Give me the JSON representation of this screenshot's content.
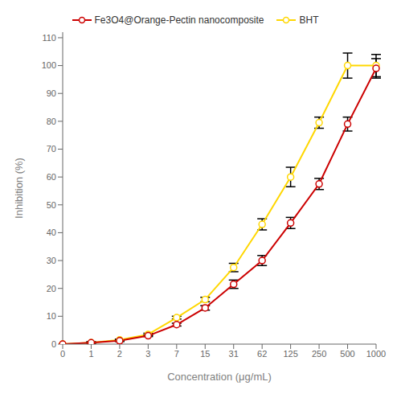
{
  "chart_data": {
    "type": "line",
    "xlabel": "Concentration (μg/mL)",
    "ylabel": "Inhibition (%)",
    "categories": [
      "0",
      "1",
      "2",
      "3",
      "7",
      "15",
      "31",
      "62",
      "125",
      "250",
      "500",
      "1000"
    ],
    "series": [
      {
        "name": "Fe3O4@Orange-Pectin nanocomposite",
        "color": "#cc0000",
        "marker": "circle",
        "values": [
          0,
          0.5,
          1.2,
          3.0,
          7.0,
          13.0,
          21.5,
          30.0,
          43.5,
          57.5,
          79.0,
          99.0
        ],
        "errors": [
          0.0,
          0.3,
          0.3,
          0.3,
          0.5,
          0.8,
          1.5,
          1.8,
          2.0,
          2.0,
          2.5,
          3.5
        ]
      },
      {
        "name": "BHT",
        "color": "#FFD700",
        "marker": "circle",
        "values": [
          0,
          0.5,
          1.5,
          3.5,
          9.5,
          16.0,
          27.5,
          43.0,
          60.0,
          79.5,
          100.0,
          100.0
        ],
        "errors": [
          0.0,
          0.3,
          0.3,
          0.4,
          0.5,
          0.8,
          1.5,
          2.0,
          3.5,
          2.0,
          4.5,
          4.0
        ]
      }
    ],
    "ylim": [
      0,
      112
    ],
    "yticks": [
      0,
      10,
      20,
      30,
      40,
      50,
      60,
      70,
      80,
      90,
      100,
      110
    ],
    "grid": false,
    "legend": "top"
  }
}
